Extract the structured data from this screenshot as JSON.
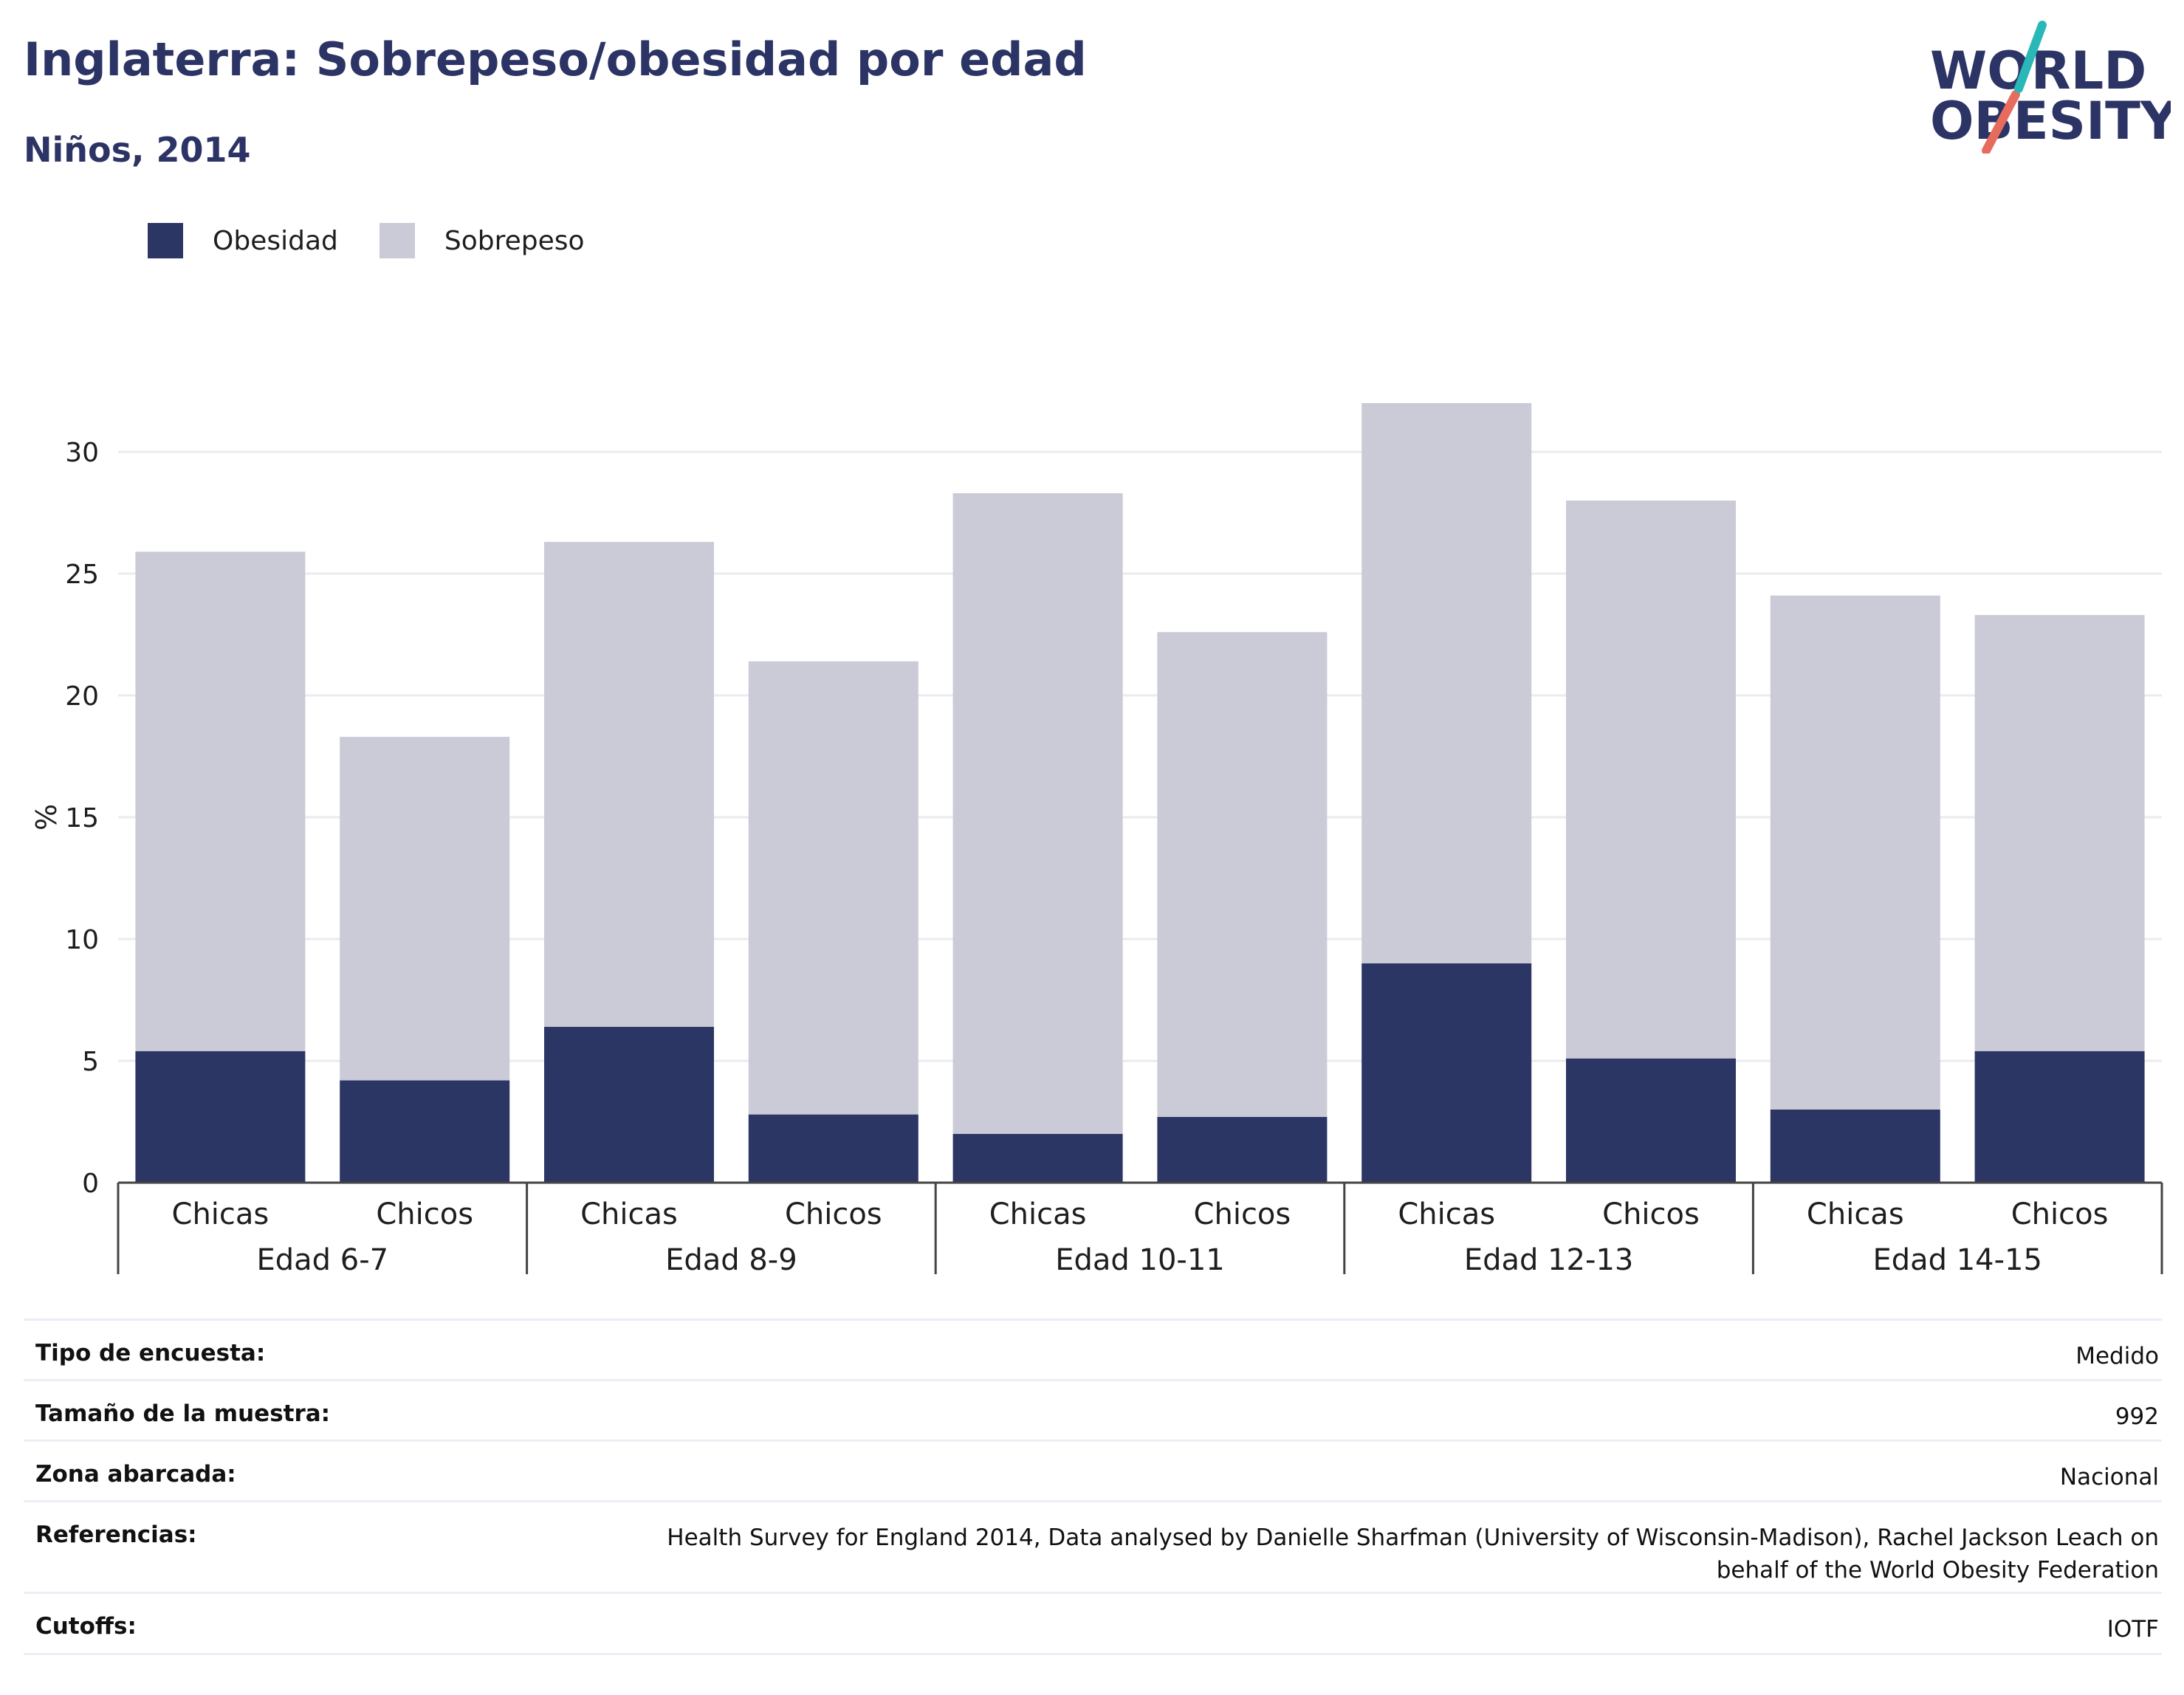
{
  "title": "Inglaterra: Sobrepeso/obesidad por edad",
  "subtitle": "Niños, 2014",
  "logo": {
    "line1": "WORLD",
    "line2": "OBESITY"
  },
  "colors": {
    "obesidad": "#2b3664",
    "sobrepeso": "#cacbd7",
    "title": "#2b3464",
    "logo_teal": "#2ab7b7",
    "logo_coral": "#e76c5d"
  },
  "legend": [
    {
      "label": "Obesidad",
      "color": "#2b3664"
    },
    {
      "label": "Sobrepeso",
      "color": "#cacbd7"
    }
  ],
  "chart_data": {
    "type": "bar",
    "stacked": true,
    "ylabel": "%",
    "ylim": [
      0,
      33
    ],
    "yticks": [
      0,
      5,
      10,
      15,
      20,
      25,
      30
    ],
    "grid": true,
    "legend_position": "top-left",
    "groups": [
      "Edad 6-7",
      "Edad 8-9",
      "Edad 10-11",
      "Edad 12-13",
      "Edad 14-15"
    ],
    "categories": [
      "Chicas",
      "Chicos",
      "Chicas",
      "Chicos",
      "Chicas",
      "Chicos",
      "Chicas",
      "Chicos",
      "Chicas",
      "Chicos"
    ],
    "series": [
      {
        "name": "Obesidad",
        "values": [
          5.4,
          4.2,
          6.4,
          2.8,
          2.0,
          2.7,
          9.0,
          5.1,
          3.0,
          5.4
        ]
      },
      {
        "name": "Sobrepeso",
        "values": [
          20.5,
          14.1,
          19.9,
          18.6,
          26.3,
          19.9,
          23.0,
          22.9,
          21.1,
          17.9
        ]
      }
    ]
  },
  "meta": [
    {
      "key": "Tipo de encuesta:",
      "value": "Medido"
    },
    {
      "key": "Tamaño de la muestra:",
      "value": "992"
    },
    {
      "key": "Zona abarcada:",
      "value": "Nacional"
    },
    {
      "key": "Referencias:",
      "value": "Health Survey for England 2014, Data analysed by Danielle Sharfman (University of Wisconsin-Madison), Rachel Jackson Leach on behalf of the World Obesity Federation"
    },
    {
      "key": "Cutoffs:",
      "value": "IOTF"
    }
  ]
}
